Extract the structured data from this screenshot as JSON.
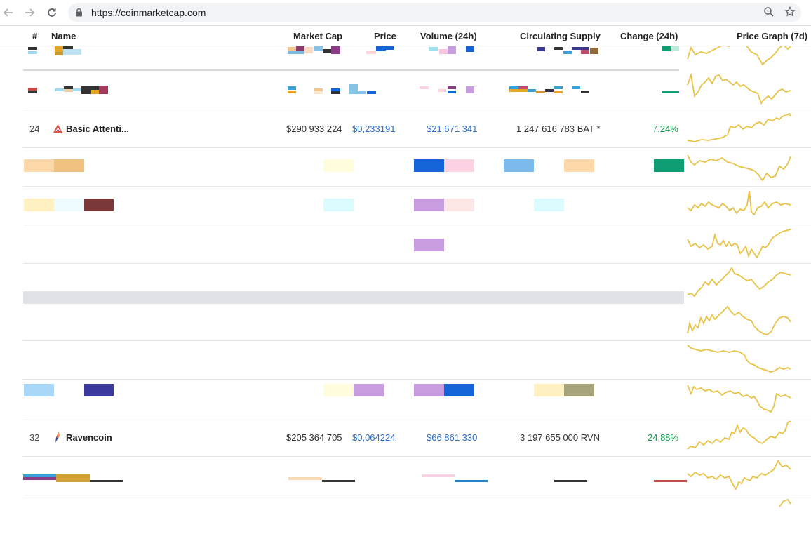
{
  "browser": {
    "url": "https://coinmarketcap.com",
    "icons": [
      "back-arrow-icon",
      "forward-arrow-icon",
      "reload-icon",
      "lock-icon",
      "zoom-icon",
      "star-icon"
    ]
  },
  "table": {
    "headers": {
      "rank": "#",
      "name": "Name",
      "market_cap": "Market Cap",
      "price": "Price",
      "volume": "Volume (24h)",
      "supply": "Circulating Supply",
      "change": "Change (24h)",
      "graph": "Price Graph (7d)"
    },
    "rows": [
      {
        "rank": "24",
        "name": "Basic Attenti...",
        "market_cap": "$290 933 224",
        "price": "$0,233191",
        "volume": "$21 671 341",
        "supply": "1 247 616 783 BAT *",
        "change": "7,24%"
      },
      {
        "rank": "32",
        "name": "Ravencoin",
        "market_cap": "$205 364 705",
        "price": "$0,064224",
        "volume": "$66 861 330",
        "supply": "3 197 655 000 RVN",
        "change": "24,88%"
      }
    ]
  },
  "colors": {
    "link_blue": "#2a6ecb",
    "positive_green": "#119b4c",
    "sparkline": "#e8c245"
  }
}
